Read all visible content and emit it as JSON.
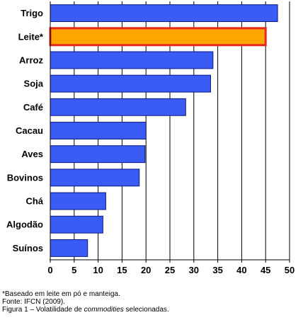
{
  "chart_data": {
    "type": "bar",
    "orientation": "horizontal",
    "categories": [
      "Trigo",
      "Leite*",
      "Arroz",
      "Soja",
      "Café",
      "Cacau",
      "Aves",
      "Bovinos",
      "Chá",
      "Algodão",
      "Suínos"
    ],
    "values": [
      47.5,
      45,
      34,
      33.5,
      28.3,
      20,
      19.8,
      18.6,
      11.6,
      11,
      7.8
    ],
    "highlight_index": 1,
    "xlim": [
      0,
      50
    ],
    "xticks": [
      "0",
      "5",
      "10",
      "15",
      "20",
      "25",
      "30",
      "35",
      "40",
      "45",
      "50"
    ],
    "grid": "vertical",
    "colors": {
      "bar": "#3a5cf5",
      "bar_edge": "#0a1a80",
      "highlight": "#ffa500",
      "highlight_edge": "#e8281e",
      "gridline": "#000000"
    }
  },
  "notes": {
    "footnote": "*Baseado em leite em pó e manteiga.",
    "source": "Fonte: IFCN (2009).",
    "caption_prefix": "Figura 1 – Volatilidade de ",
    "caption_italic": "commodities",
    "caption_suffix": " selecionadas."
  }
}
